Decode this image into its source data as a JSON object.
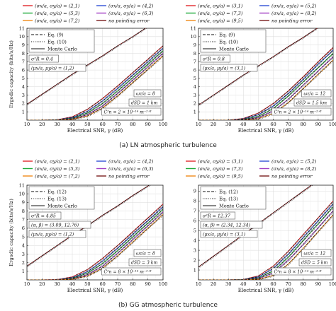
{
  "captions": [
    "(a) LN atmospheric turbulence",
    "(b) GG atmospheric turbulence"
  ],
  "chart_data": [
    {
      "type": "line",
      "xlabel": "Electrical SNR, γ (dB)",
      "ylabel": "Ergodic capacity (bits/s/Hz)",
      "xlim": [
        10,
        100
      ],
      "ylim": [
        0,
        11
      ],
      "xticks": [
        10,
        20,
        30,
        40,
        50,
        60,
        70,
        80,
        90,
        100
      ],
      "yticks": [
        1,
        2,
        3,
        4,
        5,
        6,
        7,
        8,
        9,
        10,
        11
      ],
      "grid": true,
      "color_legend": [
        {
          "label": "(σx/a, σy/a) = (2,1)",
          "color": "#e0262b"
        },
        {
          "label": "(σx/a, σy/a) = (4,2)",
          "color": "#2f4fd6"
        },
        {
          "label": "(σx/a, σy/a) = (5,3)",
          "color": "#1faa3a"
        },
        {
          "label": "(σx/a, σy/a) = (6,3)",
          "color": "#a23fc4"
        },
        {
          "label": "(σx/a, σy/a) = (7,2)",
          "color": "#f08a18"
        },
        {
          "label": "no pointing error",
          "color": "#7a1d1d"
        }
      ],
      "style_legend": [
        {
          "label": "Eq. (9)",
          "dash": "dashed"
        },
        {
          "label": "Eq. (10)",
          "dash": "dotted"
        },
        {
          "label": "Monte Carlo",
          "dash": "solid"
        }
      ],
      "params": [
        "σ²R = 0.4",
        "(μx/a, μy/a) = (1,2)"
      ],
      "params_right": [
        "ωz/a = 8",
        "dSD = 1 km",
        "C²n = 2 × 10⁻¹⁴ m⁻²ᐟ³"
      ],
      "series": [
        {
          "name": "no pointing error",
          "color": "#7a1d1d",
          "x": [
            10,
            20,
            30,
            40,
            50,
            60,
            70,
            80,
            90,
            100
          ],
          "y": [
            1.9,
            3.1,
            4.3,
            5.5,
            6.6,
            7.7,
            8.9,
            10.0,
            11.2,
            12.3
          ]
        },
        {
          "name": "(2,1)",
          "color": "#e0262b",
          "x": [
            10,
            20,
            30,
            40,
            50,
            60,
            70,
            80,
            90,
            100
          ],
          "y": [
            0,
            0,
            0.05,
            0.4,
            1.3,
            2.6,
            4.1,
            5.7,
            7.3,
            8.9
          ]
        },
        {
          "name": "(4,2)",
          "color": "#2f4fd6",
          "x": [
            10,
            20,
            30,
            40,
            50,
            60,
            70,
            80,
            90,
            100
          ],
          "y": [
            0,
            0,
            0.03,
            0.3,
            1.05,
            2.3,
            3.8,
            5.4,
            7.0,
            8.6
          ]
        },
        {
          "name": "(5,3)",
          "color": "#1faa3a",
          "x": [
            10,
            20,
            30,
            40,
            50,
            60,
            70,
            80,
            90,
            100
          ],
          "y": [
            0,
            0,
            0.02,
            0.22,
            0.85,
            2.0,
            3.5,
            5.1,
            6.7,
            8.3
          ]
        },
        {
          "name": "(6,3)",
          "color": "#a23fc4",
          "x": [
            10,
            20,
            30,
            40,
            50,
            60,
            70,
            80,
            90,
            100
          ],
          "y": [
            0,
            0,
            0.01,
            0.15,
            0.65,
            1.7,
            3.2,
            4.8,
            6.4,
            8.0
          ]
        },
        {
          "name": "(7,2)",
          "color": "#f08a18",
          "x": [
            10,
            20,
            30,
            40,
            50,
            60,
            70,
            80,
            90,
            100
          ],
          "y": [
            0,
            0,
            0,
            0.1,
            0.5,
            1.45,
            2.9,
            4.5,
            6.1,
            7.7
          ]
        }
      ]
    },
    {
      "type": "line",
      "xlabel": "Electrical SNR, γ (dB)",
      "ylabel": "",
      "xlim": [
        10,
        100
      ],
      "ylim": [
        0,
        11
      ],
      "xticks": [
        10,
        20,
        30,
        40,
        50,
        60,
        70,
        80,
        90,
        100
      ],
      "yticks": [
        1,
        2,
        3,
        4,
        5,
        6,
        7,
        8,
        9,
        10,
        11
      ],
      "grid": true,
      "color_legend": [
        {
          "label": "(σx/a, σy/a) = (3,1)",
          "color": "#e0262b"
        },
        {
          "label": "(σx/a, σy/a) = (5,2)",
          "color": "#2f4fd6"
        },
        {
          "label": "(σx/a, σy/a) = (7,3)",
          "color": "#1faa3a"
        },
        {
          "label": "(σx/a, σy/a) = (8,2)",
          "color": "#a23fc4"
        },
        {
          "label": "(σx/a, σy/a) = (9,5)",
          "color": "#f08a18"
        },
        {
          "label": "no pointing error",
          "color": "#7a1d1d"
        }
      ],
      "style_legend": [
        {
          "label": "Eq. (9)",
          "dash": "dashed"
        },
        {
          "label": "Eq. (10)",
          "dash": "dotted"
        },
        {
          "label": "Monte Carlo",
          "dash": "solid"
        }
      ],
      "params": [
        "σ²R = 0.8",
        "(μx/a, μy/a) = (3,1)"
      ],
      "params_right": [
        "ωz/a = 12",
        "dSD = 1.5 km",
        "C²n = 2 × 10⁻¹⁴ m⁻²ᐟ³"
      ],
      "series": [
        {
          "name": "no pointing error",
          "color": "#7a1d1d",
          "x": [
            10,
            20,
            30,
            40,
            50,
            60,
            70,
            80,
            90,
            100
          ],
          "y": [
            1.8,
            3.0,
            4.2,
            5.4,
            6.5,
            7.6,
            8.8,
            9.9,
            11.1,
            12.2
          ]
        },
        {
          "name": "(3,1)",
          "color": "#e0262b",
          "x": [
            10,
            20,
            30,
            40,
            50,
            60,
            70,
            80,
            90,
            100
          ],
          "y": [
            0,
            0,
            0.01,
            0.2,
            0.85,
            2.0,
            3.5,
            5.2,
            7.0,
            8.7
          ]
        },
        {
          "name": "(5,2)",
          "color": "#2f4fd6",
          "x": [
            10,
            20,
            30,
            40,
            50,
            60,
            70,
            80,
            90,
            100
          ],
          "y": [
            0,
            0,
            0,
            0.14,
            0.65,
            1.7,
            3.2,
            4.9,
            6.7,
            8.4
          ]
        },
        {
          "name": "(7,3)",
          "color": "#1faa3a",
          "x": [
            10,
            20,
            30,
            40,
            50,
            60,
            70,
            80,
            90,
            100
          ],
          "y": [
            0,
            0,
            0,
            0.08,
            0.45,
            1.4,
            2.9,
            4.6,
            6.3,
            8.0
          ]
        },
        {
          "name": "(8,2)",
          "color": "#a23fc4",
          "x": [
            10,
            20,
            30,
            40,
            50,
            60,
            70,
            80,
            90,
            100
          ],
          "y": [
            0,
            0,
            0,
            0.05,
            0.3,
            1.1,
            2.5,
            4.2,
            5.9,
            7.6
          ]
        },
        {
          "name": "(9,5)",
          "color": "#f08a18",
          "x": [
            10,
            20,
            30,
            40,
            50,
            60,
            70,
            80,
            90,
            100
          ],
          "y": [
            0,
            0,
            0,
            0.02,
            0.18,
            0.8,
            2.1,
            3.8,
            5.5,
            7.2
          ]
        }
      ]
    },
    {
      "type": "line",
      "xlabel": "Electrical SNR, γ (dB)",
      "ylabel": "Ergodic capacity (bits/s/Hz)",
      "xlim": [
        10,
        100
      ],
      "ylim": [
        0,
        11
      ],
      "xticks": [
        10,
        20,
        30,
        40,
        50,
        60,
        70,
        80,
        90,
        100
      ],
      "yticks": [
        1,
        2,
        3,
        4,
        5,
        6,
        7,
        8,
        9,
        10,
        11
      ],
      "grid": true,
      "color_legend": [
        {
          "label": "(σx/a, σy/a) = (2,1)",
          "color": "#e0262b"
        },
        {
          "label": "(σx/a, σy/a) = (4,2)",
          "color": "#2f4fd6"
        },
        {
          "label": "(σx/a, σy/a) = (5,3)",
          "color": "#1faa3a"
        },
        {
          "label": "(σx/a, σy/a) = (6,3)",
          "color": "#a23fc4"
        },
        {
          "label": "(σx/a, σy/a) = (7,2)",
          "color": "#f08a18"
        },
        {
          "label": "no pointing error",
          "color": "#7a1d1d"
        }
      ],
      "style_legend": [
        {
          "label": "Eq. (12)",
          "dash": "dashed"
        },
        {
          "label": "Eq. (13)",
          "dash": "dotted"
        },
        {
          "label": "Monte Carlo",
          "dash": "solid"
        }
      ],
      "params": [
        "σ²R = 4.85",
        "(α, β) = (3.09, 12.76)",
        "(μx/a, μy/a) = (1,2)"
      ],
      "params_right": [
        "ωz/a = 8",
        "dSD = 3 km",
        "C²n = 8 × 10⁻¹⁴ m⁻²ᐟ³"
      ],
      "series": [
        {
          "name": "no pointing error",
          "color": "#7a1d1d",
          "x": [
            10,
            20,
            30,
            40,
            50,
            60,
            70,
            80,
            90,
            100
          ],
          "y": [
            1.6,
            2.8,
            4.0,
            5.2,
            6.3,
            7.5,
            8.6,
            9.8,
            10.9,
            12.1
          ]
        },
        {
          "name": "(2,1)",
          "color": "#e0262b",
          "x": [
            10,
            20,
            30,
            40,
            50,
            60,
            70,
            80,
            90,
            100
          ],
          "y": [
            0,
            0,
            0.04,
            0.35,
            1.2,
            2.5,
            4.0,
            5.6,
            7.2,
            8.8
          ]
        },
        {
          "name": "(4,2)",
          "color": "#2f4fd6",
          "x": [
            10,
            20,
            30,
            40,
            50,
            60,
            70,
            80,
            90,
            100
          ],
          "y": [
            0,
            0,
            0.02,
            0.25,
            0.95,
            2.2,
            3.7,
            5.3,
            6.9,
            8.5
          ]
        },
        {
          "name": "(5,3)",
          "color": "#1faa3a",
          "x": [
            10,
            20,
            30,
            40,
            50,
            60,
            70,
            80,
            90,
            100
          ],
          "y": [
            0,
            0,
            0.01,
            0.18,
            0.78,
            1.9,
            3.4,
            5.0,
            6.6,
            8.2
          ]
        },
        {
          "name": "(6,3)",
          "color": "#a23fc4",
          "x": [
            10,
            20,
            30,
            40,
            50,
            60,
            70,
            80,
            90,
            100
          ],
          "y": [
            0,
            0,
            0.01,
            0.12,
            0.6,
            1.6,
            3.1,
            4.7,
            6.3,
            7.9
          ]
        },
        {
          "name": "(7,2)",
          "color": "#f08a18",
          "x": [
            10,
            20,
            30,
            40,
            50,
            60,
            70,
            80,
            90,
            100
          ],
          "y": [
            0,
            0,
            0,
            0.08,
            0.45,
            1.35,
            2.8,
            4.4,
            6.0,
            7.6
          ]
        }
      ]
    },
    {
      "type": "line",
      "xlabel": "Electrical SNR, γ (dB)",
      "ylabel": "",
      "xlim": [
        10,
        100
      ],
      "ylim": [
        0,
        9.6
      ],
      "xticks": [
        10,
        20,
        30,
        40,
        50,
        60,
        70,
        80,
        90,
        100
      ],
      "yticks": [
        1,
        2,
        3,
        4,
        5,
        6,
        7,
        8,
        9
      ],
      "grid": true,
      "color_legend": [
        {
          "label": "(σx/a, σy/a) = (3,1)",
          "color": "#e0262b"
        },
        {
          "label": "(σx/a, σy/a) = (5,2)",
          "color": "#2f4fd6"
        },
        {
          "label": "(σx/a, σy/a) = (7,3)",
          "color": "#1faa3a"
        },
        {
          "label": "(σx/a, σy/a) = (8,2)",
          "color": "#a23fc4"
        },
        {
          "label": "(σx/a, σy/a) = (9,5)",
          "color": "#f08a18"
        },
        {
          "label": "no pointing error",
          "color": "#7a1d1d"
        }
      ],
      "style_legend": [
        {
          "label": "Eq. (12)",
          "dash": "dashed"
        },
        {
          "label": "Eq. (13)",
          "dash": "dotted"
        },
        {
          "label": "Monte Carlo",
          "dash": "solid"
        }
      ],
      "params": [
        "σ²R = 12.37",
        "(α, β) = (2.34, 12.34)",
        "(μx/a, μy/a) = (3,1)"
      ],
      "params_right": [
        "ωz/a = 12",
        "dSD = 5 km",
        "C²n = 8 × 10⁻¹⁴ m⁻²ᐟ³"
      ],
      "series": [
        {
          "name": "no pointing error",
          "color": "#7a1d1d",
          "x": [
            10,
            20,
            30,
            40,
            50,
            60,
            70,
            80,
            90,
            100
          ],
          "y": [
            1.3,
            2.4,
            3.5,
            4.6,
            5.7,
            6.8,
            7.9,
            9.0,
            10.1,
            11.2
          ]
        },
        {
          "name": "(3,1)",
          "color": "#e0262b",
          "x": [
            10,
            20,
            30,
            40,
            50,
            60,
            70,
            80,
            90,
            100
          ],
          "y": [
            0,
            0,
            0,
            0.05,
            0.4,
            1.4,
            2.9,
            4.6,
            6.3,
            8.0
          ]
        },
        {
          "name": "(5,2)",
          "color": "#2f4fd6",
          "x": [
            10,
            20,
            30,
            40,
            50,
            60,
            70,
            80,
            90,
            100
          ],
          "y": [
            0,
            0,
            0,
            0.03,
            0.3,
            1.15,
            2.6,
            4.3,
            6.0,
            7.7
          ]
        },
        {
          "name": "(7,3)",
          "color": "#1faa3a",
          "x": [
            10,
            20,
            30,
            40,
            50,
            60,
            70,
            80,
            90,
            100
          ],
          "y": [
            0,
            0,
            0,
            0.02,
            0.2,
            0.9,
            2.3,
            4.0,
            5.7,
            7.4
          ]
        },
        {
          "name": "(8,2)",
          "color": "#a23fc4",
          "x": [
            10,
            20,
            30,
            40,
            50,
            60,
            70,
            80,
            90,
            100
          ],
          "y": [
            0,
            0,
            0,
            0.01,
            0.12,
            0.7,
            2.0,
            3.6,
            5.3,
            7.0
          ]
        },
        {
          "name": "(9,5)",
          "color": "#f08a18",
          "x": [
            10,
            20,
            30,
            40,
            50,
            60,
            70,
            80,
            90,
            100
          ],
          "y": [
            0,
            0,
            0,
            0,
            0.06,
            0.45,
            1.6,
            3.2,
            4.9,
            6.6
          ]
        }
      ]
    }
  ]
}
